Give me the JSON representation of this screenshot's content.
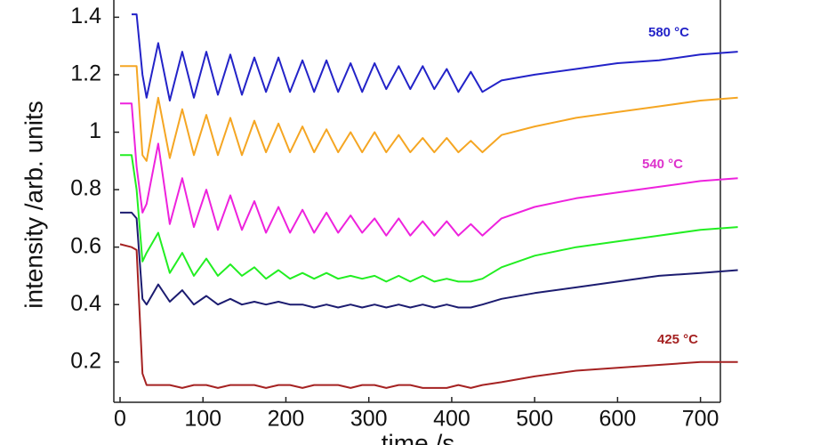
{
  "chart_data": {
    "type": "line",
    "xlabel": "time /s",
    "ylabel": "intensity /arb. units",
    "xlim": [
      -7.5,
      724
    ],
    "ylim": [
      0.06,
      1.46
    ],
    "xticks": [
      0,
      100,
      200,
      300,
      400,
      500,
      600,
      700
    ],
    "yticks": [
      0.2,
      0.4,
      0.6,
      0.8,
      1,
      1.2,
      1.4
    ],
    "grid": false,
    "x": [
      0,
      14,
      20,
      27,
      32,
      46,
      60,
      75,
      89,
      104,
      118,
      133,
      147,
      162,
      176,
      191,
      205,
      220,
      234,
      249,
      263,
      278,
      292,
      307,
      321,
      336,
      350,
      365,
      379,
      394,
      408,
      423,
      437,
      460,
      500,
      550,
      600,
      650,
      700,
      745
    ],
    "series": [
      {
        "color": "#2323c8",
        "values": [
          null,
          1.41,
          1.41,
          1.2,
          1.12,
          1.31,
          1.11,
          1.28,
          1.12,
          1.28,
          1.13,
          1.27,
          1.13,
          1.26,
          1.14,
          1.26,
          1.14,
          1.25,
          1.14,
          1.25,
          1.14,
          1.24,
          1.14,
          1.24,
          1.15,
          1.23,
          1.15,
          1.23,
          1.15,
          1.22,
          1.14,
          1.21,
          1.14,
          1.18,
          1.2,
          1.22,
          1.24,
          1.25,
          1.27,
          1.28
        ]
      },
      {
        "color": "#f5a623",
        "values": [
          1.23,
          1.23,
          1.23,
          0.92,
          0.9,
          1.12,
          0.91,
          1.08,
          0.92,
          1.06,
          0.92,
          1.05,
          0.92,
          1.04,
          0.93,
          1.03,
          0.93,
          1.02,
          0.93,
          1.01,
          0.93,
          1.0,
          0.93,
          1.0,
          0.93,
          0.99,
          0.93,
          0.98,
          0.93,
          0.98,
          0.93,
          0.97,
          0.93,
          0.99,
          1.02,
          1.05,
          1.07,
          1.09,
          1.11,
          1.12
        ]
      },
      {
        "color": "#ee22dd",
        "values": [
          1.1,
          1.1,
          0.88,
          0.72,
          0.75,
          0.96,
          0.68,
          0.84,
          0.67,
          0.8,
          0.66,
          0.78,
          0.66,
          0.76,
          0.65,
          0.74,
          0.65,
          0.73,
          0.65,
          0.72,
          0.65,
          0.71,
          0.65,
          0.7,
          0.64,
          0.7,
          0.64,
          0.69,
          0.64,
          0.69,
          0.64,
          0.68,
          0.64,
          0.7,
          0.74,
          0.77,
          0.79,
          0.81,
          0.83,
          0.84
        ]
      },
      {
        "color": "#22ee22",
        "values": [
          0.92,
          0.92,
          0.8,
          0.55,
          0.58,
          0.65,
          0.51,
          0.58,
          0.5,
          0.56,
          0.5,
          0.54,
          0.5,
          0.53,
          0.49,
          0.52,
          0.49,
          0.51,
          0.49,
          0.51,
          0.49,
          0.5,
          0.49,
          0.5,
          0.48,
          0.5,
          0.48,
          0.5,
          0.48,
          0.49,
          0.48,
          0.48,
          0.49,
          0.53,
          0.57,
          0.6,
          0.62,
          0.64,
          0.66,
          0.67
        ]
      },
      {
        "color": "#1c1c70",
        "values": [
          0.72,
          0.72,
          0.7,
          0.42,
          0.4,
          0.47,
          0.41,
          0.45,
          0.4,
          0.43,
          0.4,
          0.42,
          0.4,
          0.41,
          0.4,
          0.41,
          0.4,
          0.4,
          0.39,
          0.4,
          0.39,
          0.4,
          0.39,
          0.4,
          0.39,
          0.4,
          0.39,
          0.4,
          0.39,
          0.4,
          0.39,
          0.39,
          0.4,
          0.42,
          0.44,
          0.46,
          0.48,
          0.5,
          0.51,
          0.52
        ]
      },
      {
        "color": "#a52222",
        "values": [
          0.61,
          0.6,
          0.59,
          0.16,
          0.12,
          0.12,
          0.12,
          0.11,
          0.12,
          0.12,
          0.11,
          0.12,
          0.12,
          0.12,
          0.11,
          0.12,
          0.12,
          0.11,
          0.12,
          0.12,
          0.12,
          0.11,
          0.12,
          0.12,
          0.11,
          0.12,
          0.12,
          0.11,
          0.11,
          0.11,
          0.12,
          0.11,
          0.12,
          0.13,
          0.15,
          0.17,
          0.18,
          0.19,
          0.2,
          0.2
        ]
      }
    ],
    "annotations": [
      {
        "text": "580 °C",
        "color": "#2323c8"
      },
      {
        "text": "540 °C",
        "color": "#dd33cc"
      },
      {
        "text": "425 °C",
        "color": "#a52222"
      }
    ]
  }
}
